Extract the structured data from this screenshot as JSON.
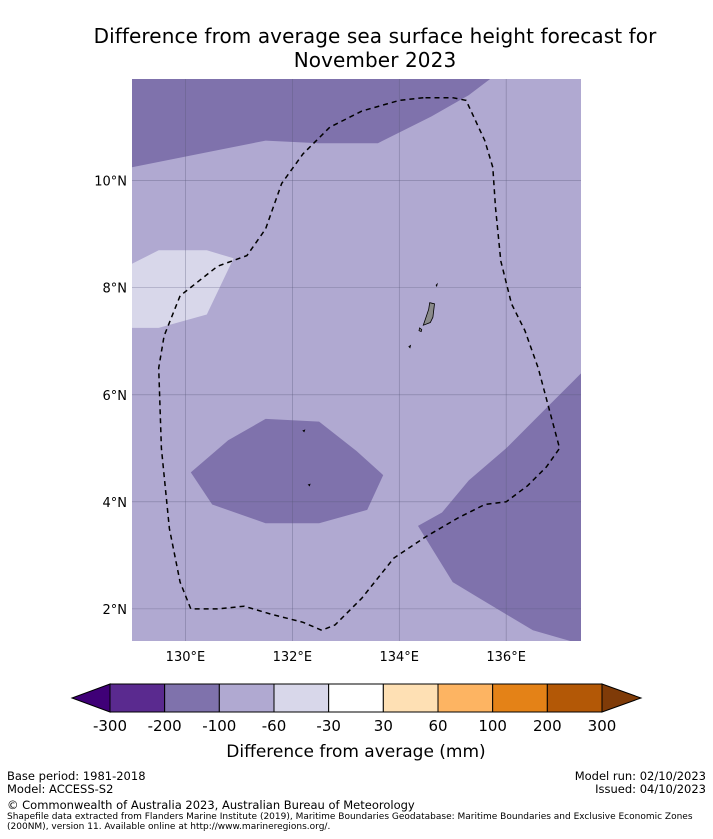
{
  "title_line1": "Difference from average sea surface height forecast for",
  "title_line2": "November 2023",
  "map": {
    "lon_range": [
      129.0,
      137.4
    ],
    "lat_range": [
      1.4,
      11.9
    ],
    "lon_ticks": [
      {
        "value": 130,
        "label": "130°E"
      },
      {
        "value": 132,
        "label": "132°E"
      },
      {
        "value": 134,
        "label": "134°E"
      },
      {
        "value": 136,
        "label": "136°E"
      }
    ],
    "lat_ticks": [
      {
        "value": 10,
        "label": "10°N"
      },
      {
        "value": 8,
        "label": "8°N"
      },
      {
        "value": 6,
        "label": "6°N"
      },
      {
        "value": 4,
        "label": "4°N"
      },
      {
        "value": 2,
        "label": "2°N"
      }
    ],
    "base_fill_color": "#b0a9d1",
    "regions": [
      {
        "category": "-200 to -100",
        "color": "#7f72ac",
        "coords": [
          [
            129.0,
            11.9
          ],
          [
            135.7,
            11.9
          ],
          [
            135.3,
            11.6
          ],
          [
            134.6,
            11.2
          ],
          [
            133.6,
            10.7
          ],
          [
            132.5,
            10.7
          ],
          [
            131.5,
            10.75
          ],
          [
            130.5,
            10.55
          ],
          [
            129.0,
            10.25
          ]
        ]
      },
      {
        "category": "-60 to -30",
        "color": "#d8d7ea",
        "coords": [
          [
            129.0,
            8.45
          ],
          [
            129.5,
            8.7
          ],
          [
            130.4,
            8.7
          ],
          [
            130.9,
            8.55
          ],
          [
            130.4,
            7.5
          ],
          [
            129.5,
            7.25
          ],
          [
            129.0,
            7.25
          ]
        ]
      },
      {
        "category": "-200 to -100",
        "color": "#7f72ac",
        "coords": [
          [
            130.1,
            4.55
          ],
          [
            130.8,
            5.15
          ],
          [
            131.5,
            5.55
          ],
          [
            132.5,
            5.5
          ],
          [
            133.2,
            4.95
          ],
          [
            133.7,
            4.5
          ],
          [
            133.4,
            3.85
          ],
          [
            132.5,
            3.6
          ],
          [
            131.5,
            3.6
          ],
          [
            130.5,
            3.95
          ]
        ]
      },
      {
        "category": "-200 to -100",
        "color": "#7f72ac",
        "coords": [
          [
            137.4,
            6.4
          ],
          [
            136.7,
            5.7
          ],
          [
            136.0,
            5.0
          ],
          [
            135.3,
            4.4
          ],
          [
            134.8,
            3.8
          ],
          [
            134.35,
            3.55
          ],
          [
            135.0,
            2.5
          ],
          [
            135.5,
            2.2
          ],
          [
            136.5,
            1.6
          ],
          [
            137.2,
            1.4
          ],
          [
            137.4,
            1.4
          ]
        ]
      }
    ],
    "eez_boundary": [
      [
        134.45,
        11.55
      ],
      [
        134.0,
        11.5
      ],
      [
        133.3,
        11.3
      ],
      [
        132.7,
        11.0
      ],
      [
        132.2,
        10.5
      ],
      [
        131.8,
        9.95
      ],
      [
        131.5,
        9.1
      ],
      [
        131.15,
        8.6
      ],
      [
        130.6,
        8.4
      ],
      [
        129.9,
        7.85
      ],
      [
        129.6,
        7.1
      ],
      [
        129.5,
        6.5
      ],
      [
        129.55,
        5.0
      ],
      [
        129.7,
        3.5
      ],
      [
        129.9,
        2.5
      ],
      [
        130.1,
        2.0
      ],
      [
        130.6,
        2.0
      ],
      [
        131.1,
        2.05
      ],
      [
        131.6,
        1.9
      ],
      [
        132.2,
        1.75
      ],
      [
        132.55,
        1.6
      ],
      [
        132.8,
        1.7
      ],
      [
        133.3,
        2.2
      ],
      [
        133.9,
        2.95
      ],
      [
        134.5,
        3.35
      ],
      [
        135.1,
        3.7
      ],
      [
        135.6,
        3.95
      ],
      [
        136.0,
        4.0
      ],
      [
        136.4,
        4.3
      ],
      [
        136.75,
        4.65
      ],
      [
        137.0,
        5.0
      ],
      [
        136.8,
        5.75
      ],
      [
        136.6,
        6.5
      ],
      [
        136.35,
        7.2
      ],
      [
        136.1,
        7.7
      ],
      [
        135.9,
        8.5
      ],
      [
        135.8,
        9.5
      ],
      [
        135.75,
        10.25
      ],
      [
        135.6,
        10.75
      ],
      [
        135.25,
        11.5
      ],
      [
        135.0,
        11.55
      ],
      [
        134.45,
        11.55
      ]
    ],
    "islands": [
      {
        "coords": [
          [
            134.57,
            7.72
          ],
          [
            134.66,
            7.7
          ],
          [
            134.63,
            7.45
          ],
          [
            134.58,
            7.35
          ],
          [
            134.45,
            7.3
          ],
          [
            134.5,
            7.45
          ],
          [
            134.55,
            7.6
          ]
        ]
      },
      {
        "coords": [
          [
            134.38,
            7.25
          ],
          [
            134.42,
            7.22
          ],
          [
            134.41,
            7.18
          ],
          [
            134.37,
            7.2
          ]
        ]
      },
      {
        "coords": [
          [
            134.18,
            6.9
          ],
          [
            134.21,
            6.92
          ],
          [
            134.2,
            6.88
          ]
        ]
      },
      {
        "coords": [
          [
            134.69,
            8.05
          ],
          [
            134.71,
            8.07
          ],
          [
            134.7,
            8.03
          ]
        ]
      },
      {
        "coords": [
          [
            132.2,
            5.33
          ],
          [
            132.23,
            5.34
          ],
          [
            132.22,
            5.31
          ]
        ]
      },
      {
        "coords": [
          [
            132.3,
            4.32
          ],
          [
            132.33,
            4.33
          ],
          [
            132.32,
            4.3
          ]
        ]
      }
    ]
  },
  "legend": {
    "title": "Difference from average (mm)",
    "colors": [
      "#3f0077",
      "#5a2a8f",
      "#7f72ac",
      "#b0a9d1",
      "#d8d7ea",
      "#ffffff",
      "#fee0b4",
      "#fdb462",
      "#e48217",
      "#b35806",
      "#7f3b08"
    ],
    "tick_labels": [
      "-300",
      "-200",
      "-100",
      "-60",
      "-30",
      "30",
      "60",
      "100",
      "200",
      "300"
    ]
  },
  "footer": {
    "base_period": "Base period: 1981-2018",
    "model": "Model: ACCESS-S2",
    "model_run": "Model run: 02/10/2023",
    "issued": "Issued: 04/10/2023",
    "copyright": "© Commonwealth of Australia 2023, Australian Bureau of Meteorology",
    "shapefile_note": "Shapefile data extracted from Flanders Marine Institute (2019), Maritime Boundaries Geodatabase: Maritime Boundaries and Exclusive Economic Zones (200NM), version 11. Available online at http://www.marineregions.org/."
  }
}
